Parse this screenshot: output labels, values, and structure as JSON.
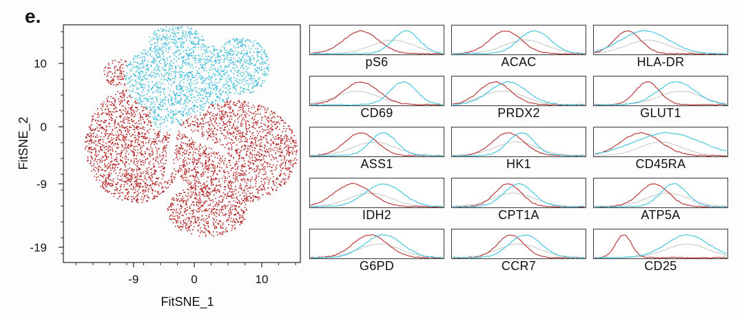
{
  "panel_label": "e.",
  "chart_data": [
    {
      "type": "scatter",
      "xlabel": "FitSNE_1",
      "ylabel": "FitSNE_2",
      "xlim": [
        -20,
        15
      ],
      "ylim": [
        -20,
        17
      ],
      "x_ticks": [
        -9,
        0,
        10
      ],
      "y_ticks": [
        10,
        0,
        -9,
        -19
      ],
      "colors": {
        "cluster_a": "#3bbcd8",
        "cluster_b": "#b22222"
      }
    },
    {
      "type": "area",
      "colors": {
        "red": "#b83a3a",
        "cyan": "#46c6e0",
        "grey": "#c4c4c4"
      },
      "panels": [
        {
          "label": "pS6"
        },
        {
          "label": "ACAC"
        },
        {
          "label": "HLA-DR"
        },
        {
          "label": "CD69"
        },
        {
          "label": "PRDX2"
        },
        {
          "label": "GLUT1"
        },
        {
          "label": "ASS1"
        },
        {
          "label": "HK1"
        },
        {
          "label": "CD45RA"
        },
        {
          "label": "IDH2"
        },
        {
          "label": "CPT1A"
        },
        {
          "label": "ATP5A"
        },
        {
          "label": "G6PD"
        },
        {
          "label": "CCR7"
        },
        {
          "label": "CD25"
        }
      ]
    }
  ]
}
